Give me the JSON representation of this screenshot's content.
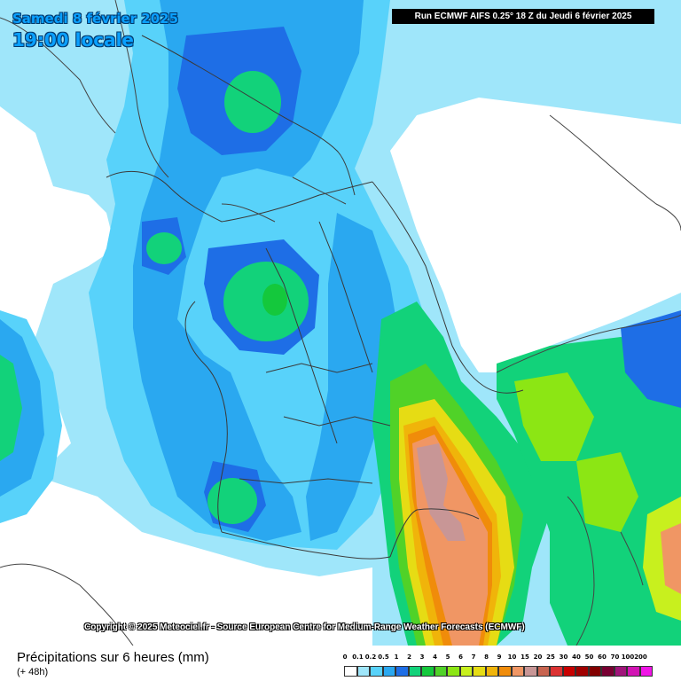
{
  "header": {
    "date_label": "Samedi 8 février 2025",
    "time_label": "19:00 locale",
    "run_label": "Run ECMWF AIFS 0.25° 18 Z du Jeudi 6 février 2025"
  },
  "copyright": "Copyright © 2025 Meteociel.fr - Source European Centre for Medium-Range Weather Forecasts (ECMWF)",
  "footer": {
    "variable_title": "Précipitations sur 6 heures (mm)",
    "lead_time": "(+ 48h)"
  },
  "legend": {
    "ticks": [
      "0",
      "0.1",
      "0.2",
      "0.5",
      "1",
      "2",
      "3",
      "4",
      "5",
      "6",
      "7",
      "8",
      "9",
      "10",
      "15",
      "20",
      "25",
      "30",
      "40",
      "50",
      "60",
      "70",
      "100",
      "200"
    ],
    "colors": [
      "#ffffff",
      "#9fe6fa",
      "#58d2fa",
      "#2aa8f0",
      "#1e6ee6",
      "#12d27a",
      "#14c83c",
      "#50d228",
      "#8ce614",
      "#c8f01e",
      "#e6dc14",
      "#f0b40a",
      "#f08c0a",
      "#f09664",
      "#c89696",
      "#c86450",
      "#dc3232",
      "#c80000",
      "#a00000",
      "#820000",
      "#780032",
      "#a0147a",
      "#d214b4",
      "#f014e6"
    ]
  },
  "colors": {
    "sea_light": "#9fe6fa",
    "sea_mid": "#58d2fa",
    "rain_blue": "#2aa8f0",
    "rain_dark_blue": "#1e6ee6",
    "rain_green": "#12d27a",
    "rain_orange": "#f09664",
    "border": "#3a3a3a"
  }
}
